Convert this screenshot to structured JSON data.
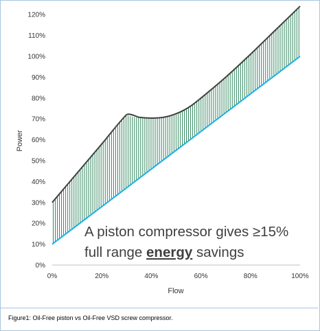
{
  "caption": "Figure1: Oil-Free piston vs Oil-Free VSD screw compressor.",
  "chart_data": {
    "type": "line",
    "xlabel": "Flow",
    "ylabel": "Power",
    "xlim": [
      0,
      100
    ],
    "ylim": [
      0,
      125
    ],
    "x_ticks": [
      0,
      20,
      40,
      60,
      80,
      100
    ],
    "x_tick_labels": [
      "0%",
      "20%",
      "40%",
      "60%",
      "80%",
      "100%"
    ],
    "y_ticks": [
      0,
      10,
      20,
      30,
      40,
      50,
      60,
      70,
      80,
      90,
      100,
      110,
      120
    ],
    "y_tick_labels": [
      "0%",
      "10%",
      "20%",
      "30%",
      "40%",
      "50%",
      "60%",
      "70%",
      "80%",
      "90%",
      "100%",
      "110%",
      "120%"
    ],
    "grid": false,
    "legend": "none",
    "shaded_area": "vertical green hatching between the two lines",
    "series": [
      {
        "color": "#404040",
        "x": [
          0,
          10,
          20,
          30,
          35,
          40,
          45,
          50,
          55,
          60,
          70,
          80,
          90,
          100
        ],
        "y": [
          30,
          44,
          58,
          72,
          70.8,
          70.4,
          70.8,
          72.5,
          75.5,
          80,
          90,
          101,
          112.5,
          124
        ]
      },
      {
        "color": "#1ab0e6",
        "x": [
          0,
          100
        ],
        "y": [
          10,
          100
        ]
      }
    ],
    "hatch_color": "#1e7a4e",
    "annotation": {
      "line1": "A piston compressor gives ≥15%",
      "line2_pre": "full range ",
      "line2_bold": "energy",
      "line2_post": " savings"
    }
  }
}
